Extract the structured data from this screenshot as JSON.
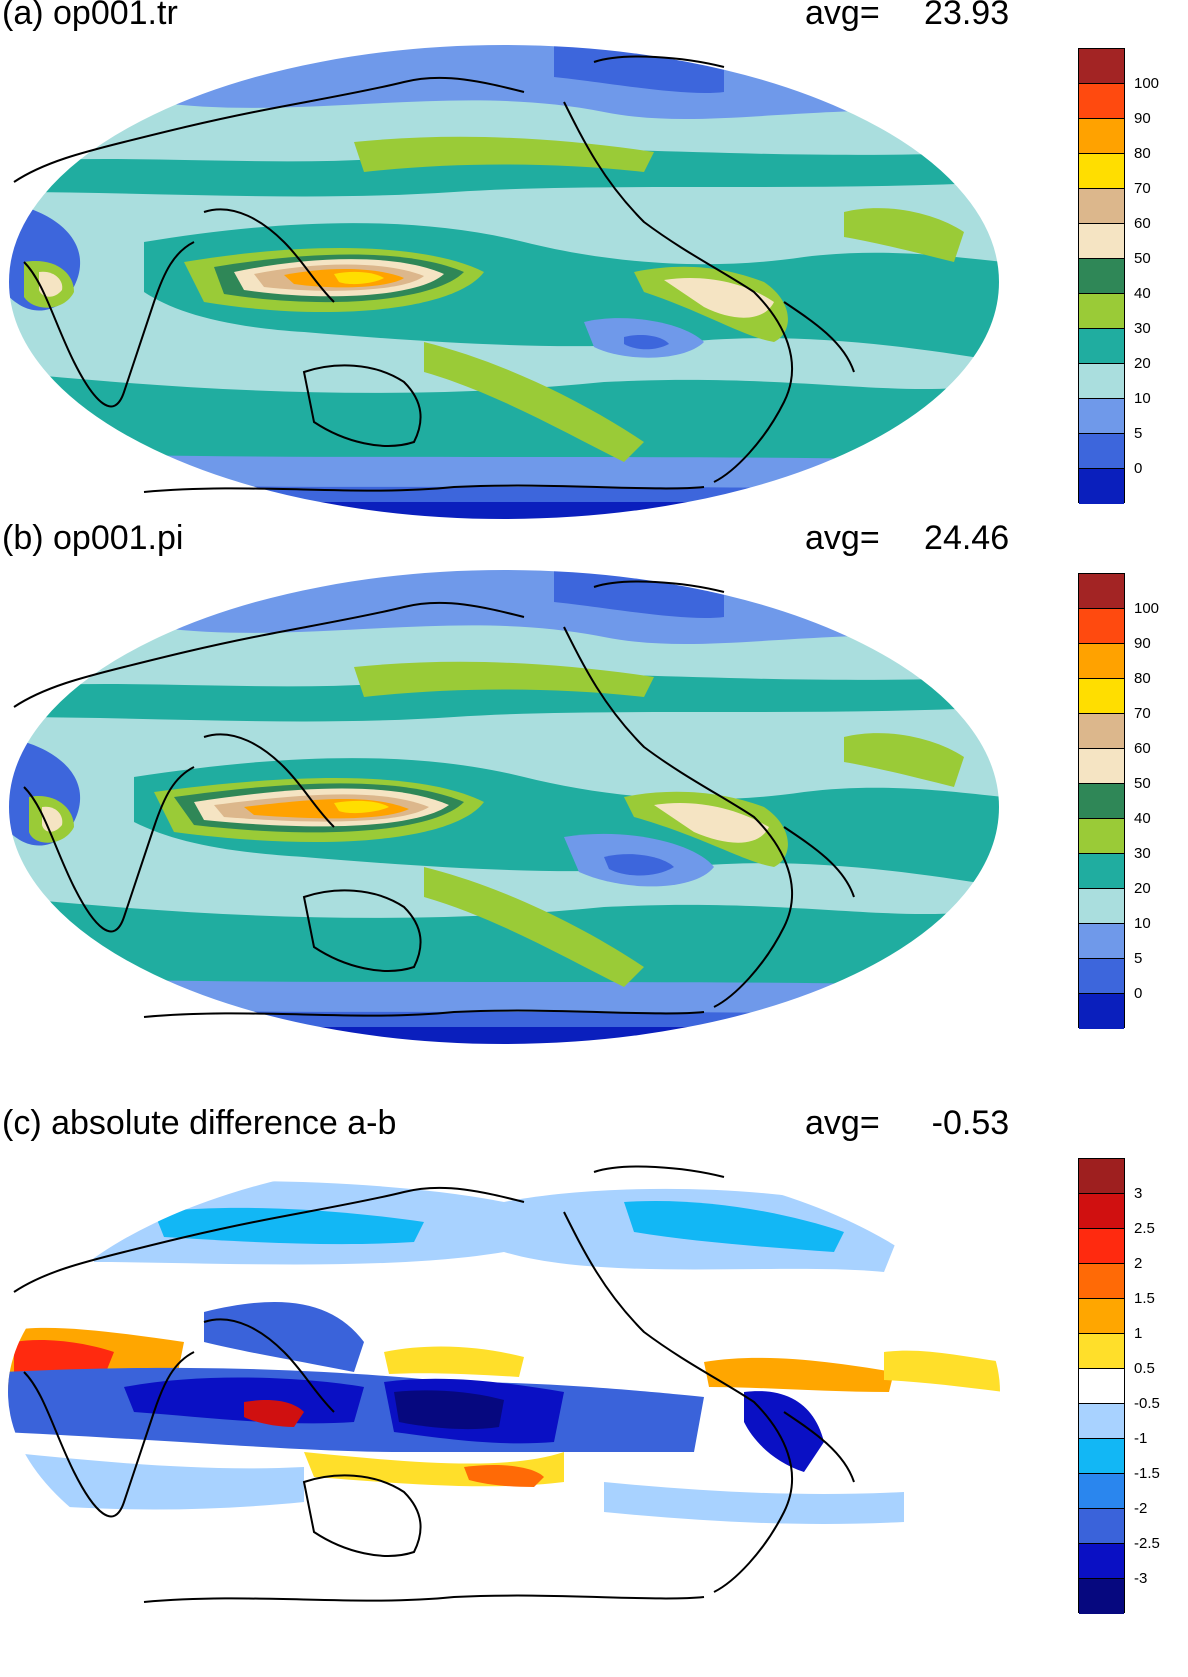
{
  "panels": [
    {
      "id": "a",
      "title": "(a) op001.tr",
      "avg_label": "avg=",
      "avg_value": "23.93",
      "colorbar": {
        "labels": [
          "100",
          "90",
          "80",
          "70",
          "60",
          "50",
          "40",
          "30",
          "20",
          "10",
          "5",
          "0"
        ],
        "colors": [
          "#a32424",
          "#ff4a0f",
          "#ffa200",
          "#ffde00",
          "#dcb78c",
          "#f5e4c3",
          "#2f8757",
          "#9acb37",
          "#20ada0",
          "#aadede",
          "#6f99ea",
          "#3d66dc",
          "#0a1fbd"
        ]
      }
    },
    {
      "id": "b",
      "title": "(b) op001.pi",
      "avg_label": "avg=",
      "avg_value": "24.46",
      "colorbar": {
        "labels": [
          "100",
          "90",
          "80",
          "70",
          "60",
          "50",
          "40",
          "30",
          "20",
          "10",
          "5",
          "0"
        ],
        "colors": [
          "#a32424",
          "#ff4a0f",
          "#ffa200",
          "#ffde00",
          "#dcb78c",
          "#f5e4c3",
          "#2f8757",
          "#9acb37",
          "#20ada0",
          "#aadede",
          "#6f99ea",
          "#3d66dc",
          "#0a1fbd"
        ]
      }
    },
    {
      "id": "c",
      "title": "(c) absolute difference a-b",
      "avg_label": "avg=",
      "avg_value": "-0.53",
      "colorbar": {
        "labels": [
          "3",
          "2.5",
          "2",
          "1.5",
          "1",
          "0.5",
          "-0.5",
          "-1",
          "-1.5",
          "-2",
          "-2.5",
          "-3"
        ],
        "colors": [
          "#9e1f1f",
          "#d01010",
          "#ff2a0f",
          "#ff6a06",
          "#ffa600",
          "#ffdf2a",
          "#ffffff",
          "#a8d2ff",
          "#12b7f5",
          "#2a86ee",
          "#3a63da",
          "#0a10c4",
          "#06087f"
        ]
      }
    }
  ]
}
